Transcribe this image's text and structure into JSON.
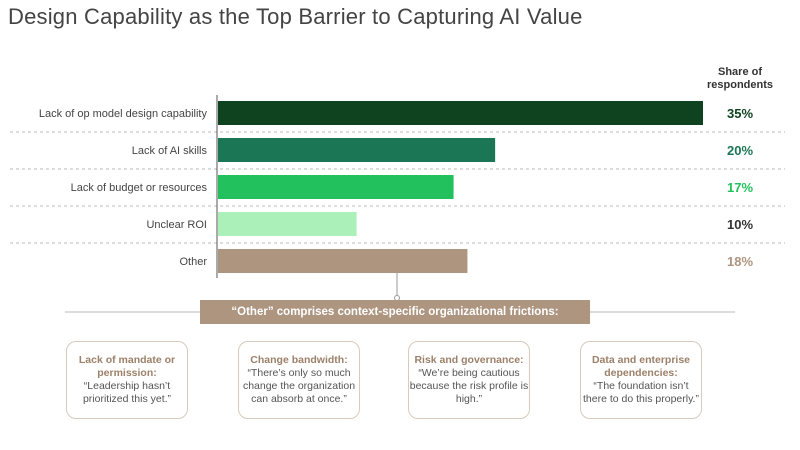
{
  "title": "Design Capability as the Top Barrier to Capturing AI Value",
  "chart_data": {
    "type": "bar",
    "orientation": "horizontal",
    "value_header": "Share of respondents",
    "categories": [
      "Lack of op model design capability",
      "Lack of AI skills",
      "Lack of budget or resources",
      "Unclear ROI",
      "Other"
    ],
    "values": [
      35,
      20,
      17,
      10,
      18
    ],
    "labels": [
      "35%",
      "20%",
      "17%",
      "10%",
      "18%"
    ],
    "colors": [
      "#0f4320",
      "#1b7655",
      "#22c15e",
      "#aaf0b8",
      "#ad9580"
    ],
    "label_colors": [
      "#0f4320",
      "#1b7655",
      "#22c15e",
      "#333333",
      "#ad9580"
    ],
    "xlim": [
      0,
      35
    ],
    "grid": "dashed row separators"
  },
  "banner": "“Other” comprises context-specific organizational frictions:",
  "boxes": [
    {
      "heading": "Lack of mandate or permission:",
      "quote": "“Leadership hasn’t prioritized this yet.”"
    },
    {
      "heading": "Change bandwidth:",
      "quote": "“There’s only so much change the organization can absorb at once.”"
    },
    {
      "heading": "Risk and governance:",
      "quote": "“We’re being cautious because the risk profile is high.”"
    },
    {
      "heading": "Data and enterprise dependencies:",
      "quote": "“The foundation isn’t there to do this properly.”"
    }
  ]
}
